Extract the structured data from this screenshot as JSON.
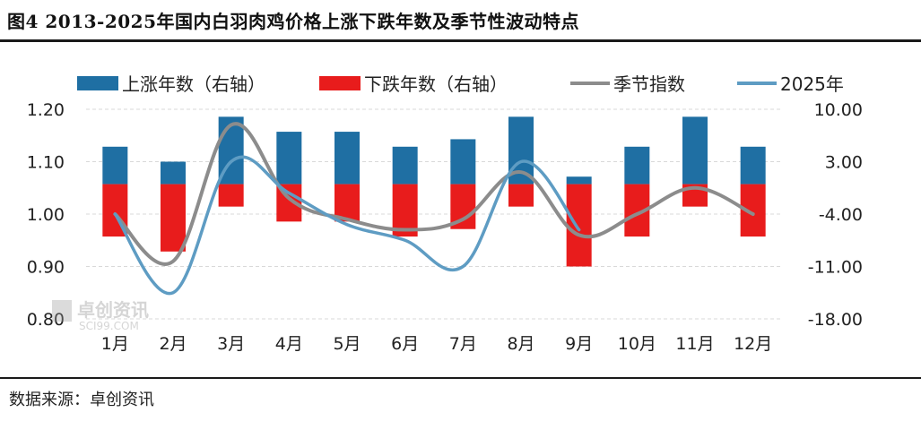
{
  "header": {
    "title": "图4 2013-2025年国内白羽肉鸡价格上涨下跌年数及季节性波动特点"
  },
  "footer": {
    "source": "数据来源：卓创资讯"
  },
  "watermark": {
    "name": "卓创资讯",
    "url": "SCI99.COM"
  },
  "colors": {
    "rise": "#1f6fa3",
    "fall": "#e81c1c",
    "seasonal": "#8c8c8c",
    "y2025": "#5e9cc3",
    "grid": "#d9d9d9"
  },
  "chart_data": {
    "type": "bar",
    "categories": [
      "1月",
      "2月",
      "3月",
      "4月",
      "5月",
      "6月",
      "7月",
      "8月",
      "9月",
      "10月",
      "11月",
      "12月"
    ],
    "legend": [
      "上涨年数（右轴）",
      "下跌年数（右轴）",
      "季节指数",
      "2025年"
    ],
    "series": [
      {
        "name": "上涨年数（右轴）",
        "type": "bar",
        "axis": "right",
        "values": [
          5,
          3,
          9,
          7,
          7,
          5,
          6,
          9,
          1,
          5,
          9,
          5
        ]
      },
      {
        "name": "下跌年数（右轴）",
        "type": "bar",
        "axis": "right",
        "values": [
          -7,
          -9,
          -3,
          -5,
          -5,
          -7,
          -6,
          -3,
          -11,
          -7,
          -3,
          -7
        ]
      },
      {
        "name": "季节指数",
        "type": "line",
        "axis": "left",
        "values": [
          1.0,
          0.91,
          1.17,
          1.03,
          0.99,
          0.97,
          0.99,
          1.08,
          0.96,
          1.0,
          1.05,
          1.0
        ]
      },
      {
        "name": "2025年",
        "type": "line",
        "axis": "left",
        "values": [
          1.0,
          0.85,
          1.1,
          1.04,
          0.98,
          0.95,
          0.9,
          1.1,
          0.97,
          null,
          null,
          null
        ]
      }
    ],
    "y_left": {
      "ticks": [
        "1.20",
        "1.10",
        "1.00",
        "0.90",
        "0.80"
      ],
      "range": [
        0.8,
        1.2
      ]
    },
    "y_right": {
      "ticks": [
        "10.00",
        "3.00",
        "-4.00",
        "-11.00",
        "-18.00"
      ],
      "range": [
        -18,
        10
      ]
    },
    "legend_position": "top",
    "grid": true
  }
}
